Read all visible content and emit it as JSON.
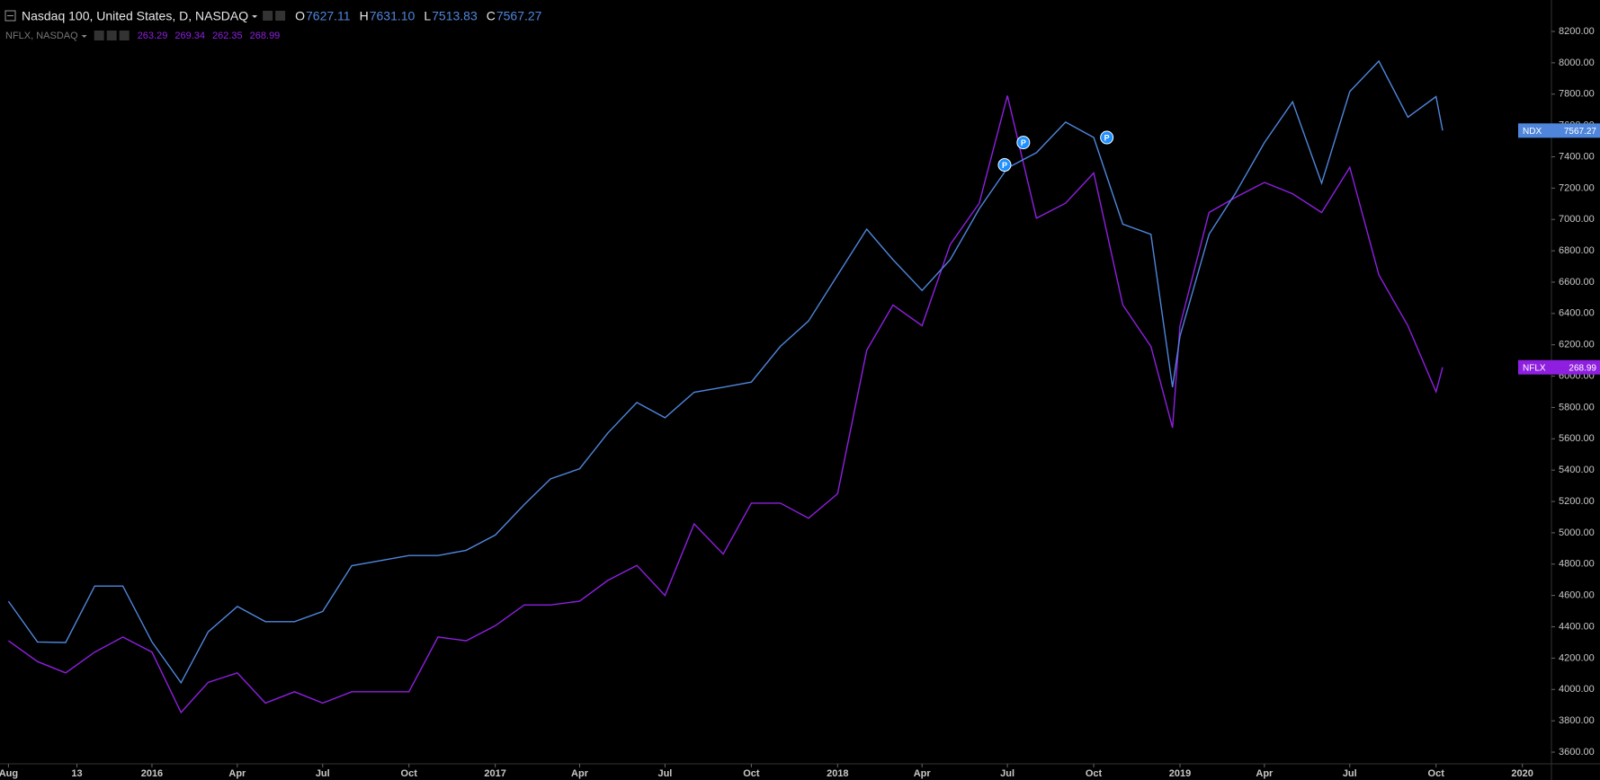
{
  "chart_data": {
    "type": "line",
    "header": {
      "title": "Nasdaq 100, United States, D, NASDAQ",
      "ohlc": [
        {
          "label": "O",
          "value": "7627.11"
        },
        {
          "label": "H",
          "value": "7631.10"
        },
        {
          "label": "L",
          "value": "7513.83"
        },
        {
          "label": "C",
          "value": "7567.27"
        }
      ],
      "compare": "NFLX, NASDAQ",
      "compare_values": [
        "263.29",
        "269.34",
        "262.35",
        "268.99"
      ]
    },
    "x": [
      "2015-08-01",
      "2015-09-01",
      "2015-10-01",
      "2015-11-01",
      "2015-12-01",
      "2016-01-01",
      "2016-02-01",
      "2016-03-01",
      "2016-04-01",
      "2016-05-01",
      "2016-06-01",
      "2016-07-01",
      "2016-08-01",
      "2016-09-01",
      "2016-10-01",
      "2016-11-01",
      "2016-12-01",
      "2017-01-01",
      "2017-02-01",
      "2017-03-01",
      "2017-04-01",
      "2017-05-01",
      "2017-06-01",
      "2017-07-01",
      "2017-08-01",
      "2017-09-01",
      "2017-10-01",
      "2017-11-01",
      "2017-12-01",
      "2018-01-01",
      "2018-02-01",
      "2018-03-01",
      "2018-04-01",
      "2018-05-01",
      "2018-06-01",
      "2018-07-01",
      "2018-08-01",
      "2018-09-01",
      "2018-10-01",
      "2018-11-01",
      "2018-12-01",
      "2018-12-24",
      "2019-01-01",
      "2019-02-01",
      "2019-03-01",
      "2019-04-01",
      "2019-05-01",
      "2019-06-01",
      "2019-07-01",
      "2019-08-01",
      "2019-09-01",
      "2019-10-01",
      "2019-10-08"
    ],
    "series": [
      {
        "name": "NDX",
        "color": "#4f86dc",
        "values": [
          4563,
          4303,
          4300,
          4660,
          4660,
          4303,
          4043,
          4368,
          4530,
          4433,
          4433,
          4498,
          4790,
          4823,
          4855,
          4855,
          4888,
          4986,
          5181,
          5344,
          5409,
          5637,
          5832,
          5734,
          5897,
          5929,
          5962,
          6190,
          6352,
          6645,
          6938,
          6743,
          6547,
          6743,
          7068,
          7328,
          7426,
          7621,
          7523,
          6970,
          6905,
          5929,
          6255,
          6905,
          7166,
          7491,
          7751,
          7231,
          7816,
          8011,
          7653,
          7784,
          7567.27
        ]
      },
      {
        "name": "NFLX",
        "color": "#8f1fe0",
        "axis": "y2",
        "values": [
          124,
          113,
          107,
          118,
          126,
          118,
          86,
          102,
          107,
          91,
          97,
          91,
          97,
          97,
          97,
          126,
          124,
          132,
          143,
          143,
          145,
          156,
          164,
          148,
          186,
          170,
          197,
          197,
          189,
          202,
          278,
          302,
          291,
          334,
          356,
          413,
          348,
          356,
          372,
          302,
          280,
          237,
          291,
          351,
          359,
          367,
          361,
          351,
          375,
          318,
          291,
          256,
          268.99
        ]
      }
    ],
    "markers": [
      {
        "x": "2018-06-28",
        "y": 7348,
        "label": "P"
      },
      {
        "x": "2018-07-18",
        "y": 7491,
        "label": "P"
      },
      {
        "x": "2018-10-15",
        "y": 7523,
        "label": "P"
      }
    ],
    "xlim": [
      "2015-07-23",
      "2020-02-01"
    ],
    "xticks": [
      {
        "value": "2015-08-01",
        "label": "Aug"
      },
      {
        "value": "2015-10-13",
        "label": "13"
      },
      {
        "value": "2016-01-01",
        "label": "2016"
      },
      {
        "value": "2016-04-01",
        "label": "Apr"
      },
      {
        "value": "2016-07-01",
        "label": "Jul"
      },
      {
        "value": "2016-10-01",
        "label": "Oct"
      },
      {
        "value": "2017-01-01",
        "label": "2017"
      },
      {
        "value": "2017-04-01",
        "label": "Apr"
      },
      {
        "value": "2017-07-01",
        "label": "Jul"
      },
      {
        "value": "2017-10-01",
        "label": "Oct"
      },
      {
        "value": "2018-01-01",
        "label": "2018"
      },
      {
        "value": "2018-04-01",
        "label": "Apr"
      },
      {
        "value": "2018-07-01",
        "label": "Jul"
      },
      {
        "value": "2018-10-01",
        "label": "Oct"
      },
      {
        "value": "2019-01-01",
        "label": "2019"
      },
      {
        "value": "2019-04-01",
        "label": "Apr"
      },
      {
        "value": "2019-07-01",
        "label": "Jul"
      },
      {
        "value": "2019-10-01",
        "label": "Oct"
      },
      {
        "value": "2020-01-01",
        "label": "2020"
      }
    ],
    "ylim": [
      3600,
      8200
    ],
    "yticks": [
      {
        "value": 3600,
        "label": "3600.00"
      },
      {
        "value": 3800,
        "label": "3800.00"
      },
      {
        "value": 4000,
        "label": "4000.00"
      },
      {
        "value": 4200,
        "label": "4200.00"
      },
      {
        "value": 4400,
        "label": "4400.00"
      },
      {
        "value": 4600,
        "label": "4600.00"
      },
      {
        "value": 4800,
        "label": "4800.00"
      },
      {
        "value": 5000,
        "label": "5000.00"
      },
      {
        "value": 5200,
        "label": "5200.00"
      },
      {
        "value": 5400,
        "label": "5400.00"
      },
      {
        "value": 5600,
        "label": "5600.00"
      },
      {
        "value": 5800,
        "label": "5800.00"
      },
      {
        "value": 6000,
        "label": "6000.00"
      },
      {
        "value": 6200,
        "label": "6200.00"
      },
      {
        "value": 6400,
        "label": "6400.00"
      },
      {
        "value": 6600,
        "label": "6600.00"
      },
      {
        "value": 6800,
        "label": "6800.00"
      },
      {
        "value": 7000,
        "label": "7000.00"
      },
      {
        "value": 7200,
        "label": "7200.00"
      },
      {
        "value": 7400,
        "label": "7400.00"
      },
      {
        "value": 7600,
        "label": "7600.00"
      },
      {
        "value": 7800,
        "label": "7800.00"
      },
      {
        "value": 8000,
        "label": "8000.00"
      },
      {
        "value": 8200,
        "label": "8200.00"
      }
    ],
    "y2lim": [
      65,
      447
    ],
    "grid": false
  }
}
